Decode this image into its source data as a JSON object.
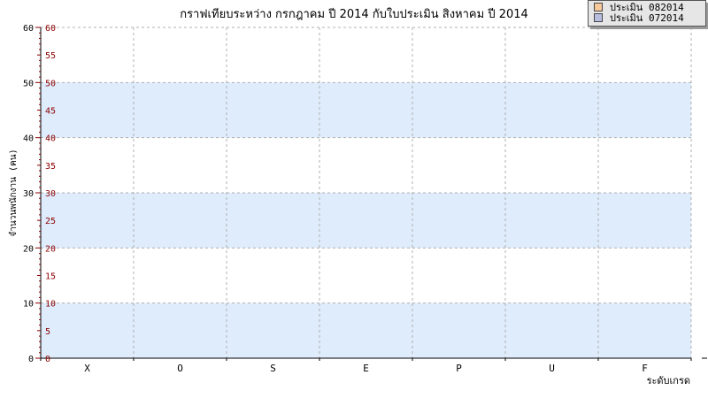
{
  "chart_data": {
    "type": "bar",
    "title": "กราฟเทียบระหว่าง กรกฎาคม ปี 2014 กับใบประเมิน สิงหาคม ปี 2014",
    "xlabel": "ระดับเกรด",
    "ylabel": "จำนวนพนักงาน (คน)",
    "categories": [
      "X",
      "O",
      "S",
      "E",
      "P",
      "U",
      "F"
    ],
    "ylim": [
      0,
      60
    ],
    "y_ticks": [
      "0",
      "5",
      "10",
      "15",
      "20",
      "25",
      "30",
      "35",
      "40",
      "45",
      "50",
      "55",
      "60"
    ],
    "y_ticks_major": [
      "0",
      "10",
      "20",
      "30",
      "40",
      "50",
      "60"
    ],
    "series": [
      {
        "name": "ประเมิน 082014",
        "values": [
          0,
          0,
          0,
          0,
          0,
          0,
          0
        ],
        "color": "#f6c89a"
      },
      {
        "name": "ประเมิน 072014",
        "values": [
          0,
          0,
          0,
          0,
          0,
          0,
          0
        ],
        "color": "#b8bde0"
      }
    ],
    "grid": true,
    "band_color": "#deecfc",
    "legend_position": "top-right"
  }
}
